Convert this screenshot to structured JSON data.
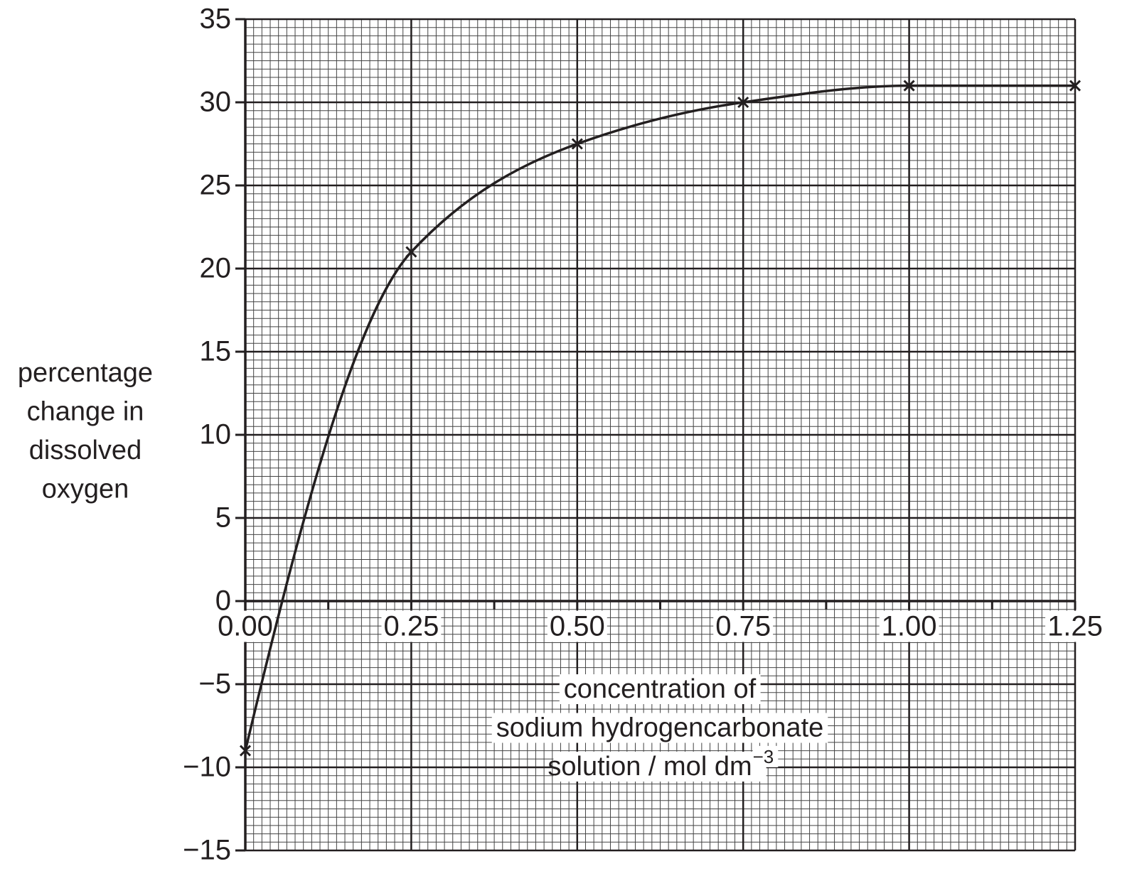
{
  "chart_data": {
    "type": "line",
    "ylabel_lines": [
      "percentage",
      "change in",
      "dissolved",
      "oxygen"
    ],
    "xlabel_lines": [
      "concentration of",
      "sodium hydrogencarbonate",
      "solution / mol dm"
    ],
    "xlabel_unit_exponent": "−3",
    "x": [
      0,
      0.25,
      0.5,
      0.75,
      1.0,
      1.25
    ],
    "series": [
      {
        "color": "#231f20",
        "values": [
          -9,
          21,
          27.5,
          30,
          31,
          31
        ]
      }
    ],
    "xlim": [
      0,
      1.25
    ],
    "ylim": [
      -15,
      35
    ],
    "xticks": [
      {
        "value": 0,
        "label": "0.00"
      },
      0.25,
      {
        "value": 0.5,
        "label": "0.50"
      },
      0.75,
      {
        "value": 1.0,
        "label": "1.00"
      },
      1.25
    ],
    "yticks": [
      {
        "value": -15,
        "label": "−15"
      },
      {
        "value": -10,
        "label": "−10"
      },
      {
        "value": -5,
        "label": "−5"
      },
      0,
      5,
      10,
      15,
      20,
      25,
      30,
      35
    ],
    "grid": true,
    "marker": "x",
    "smooth": true
  }
}
